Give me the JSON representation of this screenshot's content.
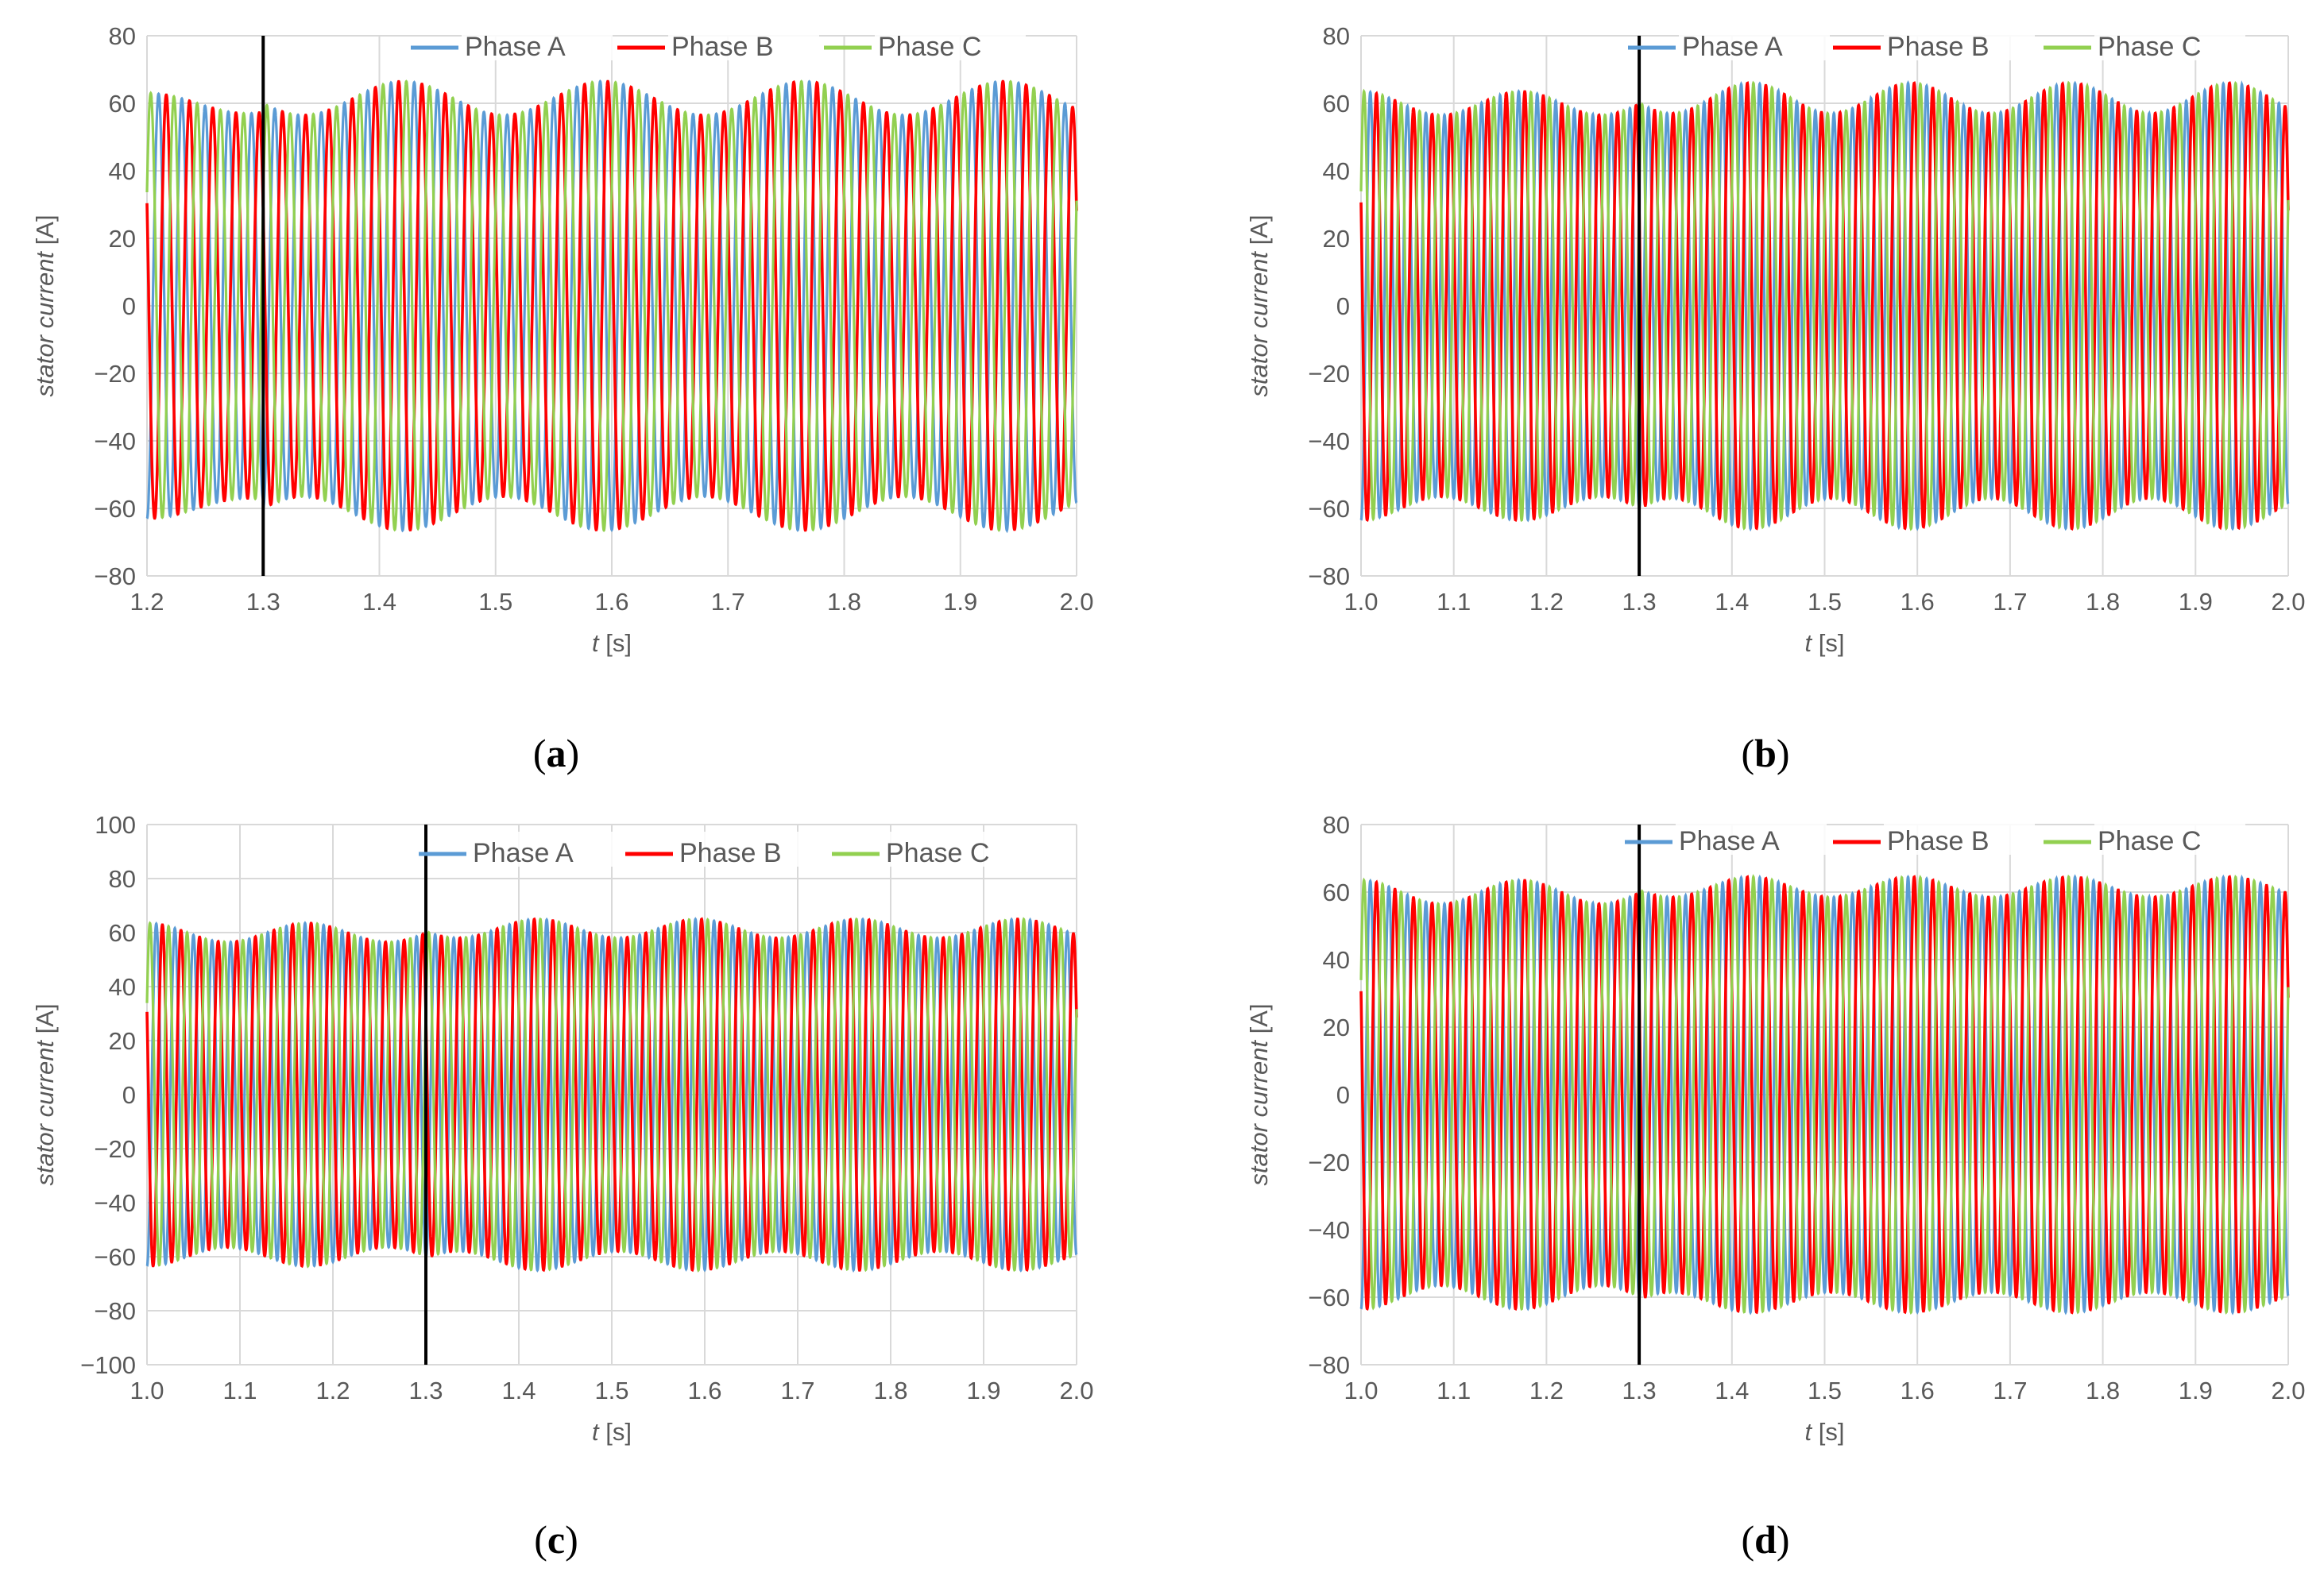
{
  "colors": {
    "phase_a": "#5b9bd5",
    "phase_b": "#ff0000",
    "phase_c": "#92d050",
    "grid": "#d9d9d9",
    "marker": "#000000"
  },
  "chart_data": [
    {
      "type": "line",
      "caption_open": "(",
      "caption_letter": "a",
      "caption_close": ")",
      "xlabel_var": "t",
      "xlabel_unit": " [s]",
      "ylabel": "stator current [A]",
      "xlim": [
        1.2,
        2.0
      ],
      "x_ticks": [
        "1.2",
        "1.3",
        "1.4",
        "1.5",
        "1.6",
        "1.7",
        "1.8",
        "1.9",
        "2.0"
      ],
      "ylim": [
        -80,
        80
      ],
      "y_ticks": [
        "80",
        "60",
        "40",
        "20",
        "0",
        "-20",
        "-40",
        "-60",
        "-80"
      ],
      "marker_t": 1.3,
      "legend": [
        "Phase A",
        "Phase B",
        "Phase C"
      ],
      "signal": {
        "frequency_hz": 50,
        "amplitude_base": 60,
        "pre_event_ripple": 3,
        "pre_event_ripple_hz": 5.8,
        "post_event_ripple": 5,
        "post_event_ripple_hz": 5.8,
        "end_level": 50
      }
    },
    {
      "type": "line",
      "caption_open": "(",
      "caption_letter": "b",
      "caption_close": ")",
      "xlabel_var": "t",
      "xlabel_unit": " [s]",
      "ylabel": "stator current [A]",
      "xlim": [
        1.0,
        2.0
      ],
      "x_ticks": [
        "1.0",
        "1.1",
        "1.2",
        "1.3",
        "1.4",
        "1.5",
        "1.6",
        "1.7",
        "1.8",
        "1.9",
        "2.0"
      ],
      "ylim": [
        -80,
        80
      ],
      "y_ticks": [
        "80",
        "60",
        "40",
        "20",
        "0",
        "-20",
        "-40",
        "-60",
        "-80"
      ],
      "marker_t": 1.3,
      "legend": [
        "Phase A",
        "Phase B",
        "Phase C"
      ],
      "signal": {
        "frequency_hz": 50,
        "amplitude_base": 60,
        "pre_event_ripple": 3.5,
        "pre_event_ripple_hz": 5.8,
        "post_event_ripple": 4.5,
        "post_event_ripple_hz": 5.8,
        "end_level": 50
      }
    },
    {
      "type": "line",
      "caption_open": "(",
      "caption_letter": "c",
      "caption_close": ")",
      "xlabel_var": "t",
      "xlabel_unit": " [s]",
      "ylabel": "stator current [A]",
      "xlim": [
        1.0,
        2.0
      ],
      "x_ticks": [
        "1.0",
        "1.1",
        "1.2",
        "1.3",
        "1.4",
        "1.5",
        "1.6",
        "1.7",
        "1.8",
        "1.9",
        "2.0"
      ],
      "ylim": [
        -100,
        100
      ],
      "y_ticks": [
        "100",
        "80",
        "60",
        "40",
        "20",
        "0",
        "-20",
        "-40",
        "-60",
        "-80",
        "-100"
      ],
      "marker_t": 1.3,
      "legend": [
        "Phase A",
        "Phase B",
        "Phase C"
      ],
      "signal": {
        "frequency_hz": 50,
        "amplitude_base": 60,
        "pre_event_ripple": 3.5,
        "pre_event_ripple_hz": 5.8,
        "post_event_ripple": 3.5,
        "post_event_ripple_hz": 5.8,
        "end_level": 50
      }
    },
    {
      "type": "line",
      "caption_open": "(",
      "caption_letter": "d",
      "caption_close": ")",
      "xlabel_var": "t",
      "xlabel_unit": " [s]",
      "ylabel": "stator current [A]",
      "xlim": [
        1.0,
        2.0
      ],
      "x_ticks": [
        "1.0",
        "1.1",
        "1.2",
        "1.3",
        "1.4",
        "1.5",
        "1.6",
        "1.7",
        "1.8",
        "1.9",
        "2.0"
      ],
      "ylim": [
        -80,
        80
      ],
      "y_ticks": [
        "80",
        "60",
        "40",
        "20",
        "0",
        "-20",
        "-40",
        "-60",
        "-80"
      ],
      "marker_t": 1.3,
      "legend": [
        "Phase A",
        "Phase B",
        "Phase C"
      ],
      "signal": {
        "frequency_hz": 50,
        "amplitude_base": 60,
        "pre_event_ripple": 3.5,
        "pre_event_ripple_hz": 5.8,
        "post_event_ripple": 3,
        "post_event_ripple_hz": 5.8,
        "end_level": 50
      }
    }
  ]
}
